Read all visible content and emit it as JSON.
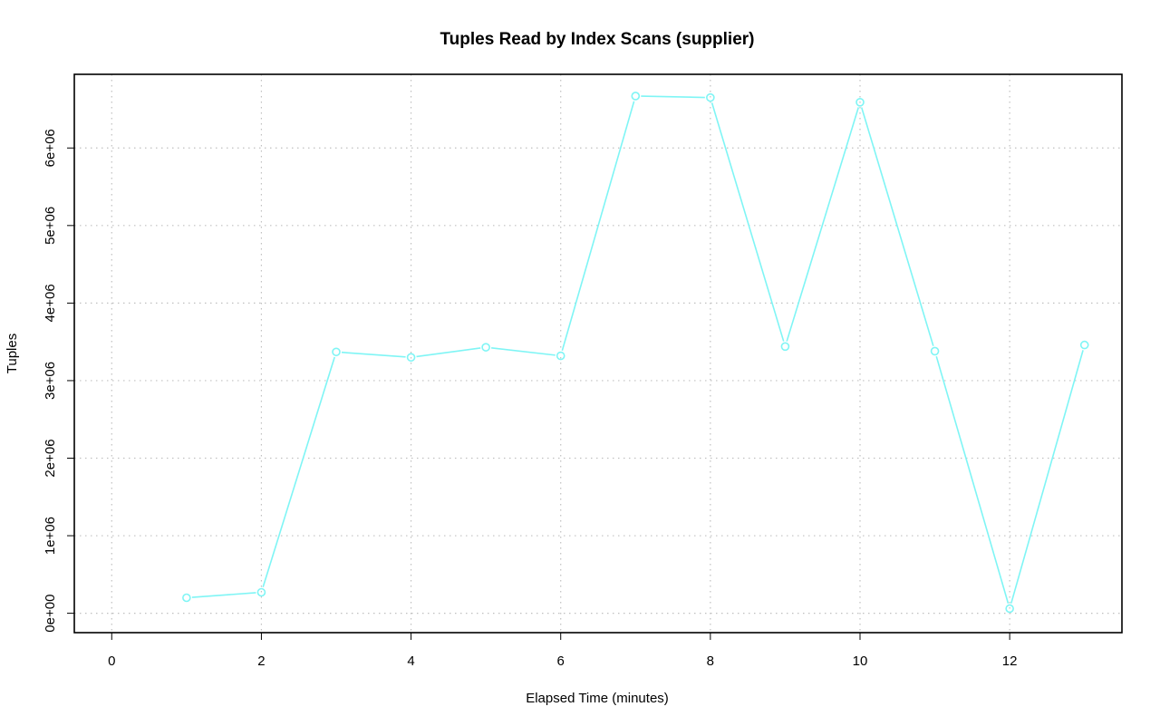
{
  "chart_data": {
    "type": "line",
    "title": "Tuples Read by Index Scans (supplier)",
    "xlabel": "Elapsed Time (minutes)",
    "ylabel": "Tuples",
    "xlim": [
      -0.5,
      13.5
    ],
    "ylim": [
      -250000,
      6950000
    ],
    "x_ticks": [
      0,
      2,
      4,
      6,
      8,
      10,
      12
    ],
    "x_tick_labels": [
      "0",
      "2",
      "4",
      "6",
      "8",
      "10",
      "12"
    ],
    "y_ticks": [
      0,
      1000000,
      2000000,
      3000000,
      4000000,
      5000000,
      6000000
    ],
    "y_tick_labels": [
      "0e+00",
      "1e+06",
      "2e+06",
      "3e+06",
      "4e+06",
      "5e+06",
      "6e+06"
    ],
    "grid": true,
    "series": [
      {
        "color": "#7ff5f5",
        "x": [
          1,
          2,
          3,
          4,
          5,
          6,
          7,
          8,
          9,
          10,
          11,
          12,
          13
        ],
        "values": [
          200000,
          270000,
          3370000,
          3300000,
          3430000,
          3320000,
          6670000,
          6650000,
          3440000,
          6590000,
          3380000,
          60000,
          3460000
        ]
      }
    ]
  }
}
